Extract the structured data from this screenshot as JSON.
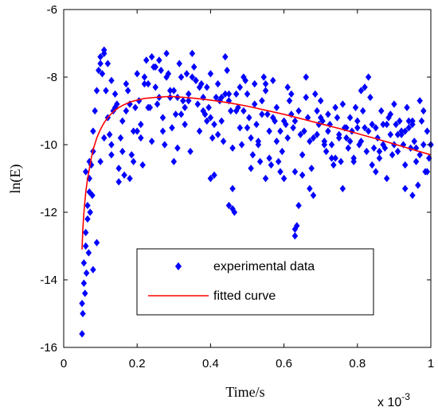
{
  "chart_data": {
    "type": "scatter",
    "xlabel": "Time/s",
    "ylabel": "ln(E)",
    "x_multiplier_base": "x 10",
    "x_multiplier_exp": "-3",
    "xlim": [
      0,
      0.001
    ],
    "ylim": [
      -16,
      -6
    ],
    "xticks": [
      0,
      0.0002,
      0.0004,
      0.0006,
      0.0008,
      0.001
    ],
    "xtick_labels": [
      "0",
      "0.2",
      "0.4",
      "0.6",
      "0.8",
      "1"
    ],
    "yticks": [
      -16,
      -14,
      -12,
      -10,
      -8,
      -6
    ],
    "ytick_labels": [
      "-16",
      "-14",
      "-12",
      "-10",
      "-8",
      "-6"
    ],
    "legend_position": "lower-center",
    "colors": {
      "scatter": "#0000ff",
      "curve": "#ff0000",
      "axes": "#000000"
    },
    "series": [
      {
        "name": "experimental data",
        "style": "markers",
        "x": [
          5e-05,
          5e-05,
          5.5e-05,
          5.5e-05,
          6e-05,
          6e-05,
          6.5e-05,
          6.5e-05,
          7e-05,
          7e-05,
          7.5e-05,
          8e-05,
          8e-05,
          8.5e-05,
          9e-05,
          9.5e-05,
          0.0001,
          0.0001,
          0.000105,
          0.00011,
          0.00011,
          0.000115,
          0.00012,
          0.000125,
          0.00013,
          0.000135,
          0.00014,
          0.000145,
          0.00015,
          0.000155,
          0.00016,
          0.000165,
          0.00017,
          0.000175,
          0.00018,
          0.000185,
          0.00019,
          0.000195,
          0.0002,
          0.000205,
          0.00021,
          0.000215,
          0.00022,
          0.000225,
          0.00023,
          0.000235,
          0.00024,
          0.000245,
          0.00025,
          0.000255,
          0.00026,
          0.000265,
          0.00027,
          0.000275,
          0.00028,
          0.000285,
          0.00029,
          0.000295,
          0.0003,
          0.000305,
          0.00031,
          0.000315,
          0.00032,
          0.000325,
          0.00033,
          0.000335,
          0.00034,
          0.000345,
          0.00035,
          0.000355,
          0.00036,
          0.000365,
          0.00037,
          0.000375,
          0.00038,
          0.000385,
          0.00039,
          0.000395,
          0.0004,
          0.000405,
          0.00041,
          0.000415,
          0.00042,
          0.000425,
          0.00043,
          0.000435,
          0.00044,
          0.000445,
          0.00045,
          0.000455,
          0.00046,
          0.000465,
          0.00047,
          0.000475,
          0.00048,
          0.000485,
          0.00049,
          0.000495,
          0.0005,
          0.000505,
          0.00051,
          0.000515,
          0.00052,
          0.000525,
          0.00053,
          0.000535,
          0.00054,
          0.000545,
          0.00055,
          0.000555,
          0.00056,
          0.000565,
          0.00057,
          0.000575,
          0.00058,
          0.000585,
          0.00059,
          0.000595,
          0.0006,
          0.000605,
          0.00061,
          0.000615,
          0.00062,
          0.000625,
          0.00063,
          0.000635,
          0.00064,
          0.000645,
          0.00065,
          0.000655,
          0.00066,
          0.000665,
          0.00067,
          0.000675,
          0.00068,
          0.000685,
          0.00069,
          0.000695,
          0.0007,
          0.000705,
          0.00071,
          0.000715,
          0.00072,
          0.000725,
          0.00073,
          0.000735,
          0.00074,
          0.000745,
          0.00075,
          0.000755,
          0.00076,
          0.000765,
          0.00077,
          0.000775,
          0.00078,
          0.000785,
          0.00079,
          0.000795,
          0.0008,
          0.000805,
          0.00081,
          0.000815,
          0.00082,
          0.000825,
          0.00083,
          0.000835,
          0.00084,
          0.000845,
          0.00085,
          0.000855,
          0.00086,
          0.000865,
          0.00087,
          0.000875,
          0.00088,
          0.000885,
          0.00089,
          0.000895,
          0.0009,
          0.000905,
          0.00091,
          0.000915,
          0.00092,
          0.000925,
          0.00093,
          0.000935,
          0.00094,
          0.000945,
          0.00095,
          0.000955,
          0.00096,
          0.000965,
          0.00097,
          0.000975,
          0.00098,
          0.000985,
          0.00099,
          0.000995,
          0.001,
          6e-05,
          7e-05,
          8e-05,
          9e-05,
          0.0001,
          0.00011,
          0.00012,
          0.00013,
          0.00014,
          0.00016,
          0.00018,
          0.0002,
          0.00022,
          0.00024,
          0.00026,
          0.00028,
          0.0003,
          0.00032,
          0.00034,
          0.00036,
          0.00038,
          0.0004,
          0.00042,
          0.00044,
          0.00046,
          0.00048,
          0.0005,
          0.00052,
          0.00054,
          0.00056,
          0.00058,
          0.0006,
          0.00062,
          0.00064,
          0.00066,
          0.00068,
          0.0007,
          0.00072,
          0.00074,
          0.00076,
          0.00078,
          0.0008,
          0.00082,
          0.00084,
          0.00086,
          0.00088,
          0.0009,
          0.00092,
          0.00094,
          0.00096,
          0.00098,
          0.00013,
          0.00017,
          0.00021,
          0.00025,
          0.00029,
          0.00033,
          0.00037,
          0.00041,
          0.00045,
          0.00049,
          0.00053,
          0.00057,
          0.00061,
          0.00065,
          0.00069,
          0.00073,
          0.00077,
          0.00081,
          0.00085,
          0.00089,
          0.00093,
          0.00097,
          0.00015,
          0.00019,
          0.00023,
          0.00027,
          0.00031,
          0.00035,
          0.00039,
          0.00043,
          0.00047,
          0.00051,
          0.00055,
          0.00059,
          0.00063,
          0.00067,
          0.00071,
          0.00075,
          0.00079,
          0.00083,
          0.00087,
          0.00091,
          0.00095,
          0.00099,
          5.2e-05,
          5.8e-05,
          6.2e-05,
          6.8e-05,
          7.2e-05,
          7.8e-05,
          0.00045,
          0.00063,
          0.00063,
          0.00046,
          0.0004,
          0.00055,
          0.00093,
          0.00095
        ],
        "y": [
          -15.6,
          -14.7,
          -14.1,
          -13.5,
          -13.0,
          -12.6,
          -12.2,
          -11.8,
          -11.4,
          -11.0,
          -10.6,
          -10.2,
          -9.6,
          -9.0,
          -8.4,
          -7.8,
          -7.4,
          -7.6,
          -7.9,
          -7.3,
          -7.2,
          -8.4,
          -9.2,
          -9.7,
          -10.3,
          -9.0,
          -8.5,
          -8.8,
          -11.1,
          -9.8,
          -9.3,
          -10.9,
          -9.0,
          -8.4,
          -8.8,
          -10.3,
          -9.6,
          -8.9,
          -7.9,
          -8.7,
          -9.8,
          -10.6,
          -8.0,
          -7.5,
          -8.2,
          -8.9,
          -7.4,
          -7.7,
          -8.3,
          -8.8,
          -7.5,
          -7.8,
          -9.2,
          -10.0,
          -7.3,
          -7.9,
          -8.4,
          -9.5,
          -10.5,
          -9.1,
          -8.6,
          -7.6,
          -8.0,
          -8.7,
          -9.4,
          -7.9,
          -8.5,
          -10.2,
          -7.3,
          -7.7,
          -8.1,
          -8.8,
          -9.6,
          -8.2,
          -8.6,
          -9.1,
          -8.3,
          -8.9,
          -9.2,
          -9.8,
          -10.9,
          -8.6,
          -8.2,
          -8.7,
          -9.3,
          -9.9,
          -7.4,
          -7.8,
          -8.5,
          -9.0,
          -11.3,
          -12.0,
          -8.5,
          -8.9,
          -9.5,
          -10.0,
          -9.0,
          -8.1,
          -8.5,
          -9.2,
          -9.8,
          -10.3,
          -8.2,
          -9.4,
          -9.9,
          -10.5,
          -8.7,
          -8.0,
          -8.4,
          -9.1,
          -9.6,
          -10.6,
          -8.1,
          -9.3,
          -9.9,
          -10.5,
          -9.6,
          -10.2,
          -11.0,
          -9.4,
          -8.3,
          -8.7,
          -9.1,
          -9.5,
          -10.8,
          -12.4,
          -9.0,
          -9.7,
          -10.3,
          -9.6,
          -8.6,
          -9.2,
          -9.9,
          -10.7,
          -11.5,
          -8.5,
          -9.0,
          -9.4,
          -8.7,
          -9.3,
          -9.9,
          -10.2,
          -9.1,
          -9.4,
          -10.0,
          -10.6,
          -8.9,
          -9.2,
          -9.7,
          -10.5,
          -11.3,
          -9.5,
          -9.8,
          -10.1,
          -9.2,
          -9.6,
          -10.4,
          -8.9,
          -9.3,
          -10.0,
          -8.4,
          -9.0,
          -9.5,
          -10.2,
          -8.0,
          -8.6,
          -9.4,
          -10.1,
          -9.5,
          -9.8,
          -10.4,
          -9.0,
          -9.4,
          -10.1,
          -11.0,
          -9.2,
          -9.7,
          -10.3,
          -8.8,
          -9.4,
          -10.2,
          -9.3,
          -9.6,
          -10.0,
          -10.6,
          -8.9,
          -9.5,
          -10.1,
          -9.4,
          -9.9,
          -10.5,
          -11.2,
          -8.7,
          -9.3,
          -10.0,
          -10.8,
          -9.6,
          -10.4,
          -10.0,
          -10.8,
          -10.5,
          -13.7,
          -12.9,
          -10.5,
          -9.8,
          -7.6,
          -8.1,
          -8.9,
          -10.2,
          -11.0,
          -9.6,
          -8.2,
          -9.9,
          -8.6,
          -8.0,
          -8.4,
          -9.1,
          -8.7,
          -8.1,
          -9.0,
          -7.9,
          -9.7,
          -8.5,
          -10.1,
          -8.3,
          -9.5,
          -8.8,
          -9.1,
          -10.4,
          -8.9,
          -9.3,
          -8.5,
          -11.8,
          -8.0,
          -9.8,
          -9.2,
          -9.6,
          -10.4,
          -8.8,
          -9.9,
          -9.5,
          -8.3,
          -10.6,
          -10.2,
          -9.4,
          -10.0,
          -9.7,
          -9.3,
          -10.1,
          -9.0,
          -10.0,
          -8.2,
          -9.4,
          -7.7,
          -8.6,
          -8.9,
          -8.3,
          -9.4,
          -8.7,
          -8.0,
          -10.0,
          -9.2,
          -9.8,
          -10.9,
          -9.7,
          -10.4,
          -9.5,
          -9.9,
          -10.8,
          -9.1,
          -9.6,
          -10.3,
          -10.7,
          -10.5,
          -8.9,
          -9.6,
          -10.1,
          -8.0,
          -9.3,
          -8.6,
          -9.0,
          -10.7,
          -8.2,
          -10.8,
          -9.3,
          -11.3,
          -10.0,
          -9.8,
          -10.5,
          -9.6,
          -10.0,
          -9.7,
          -9.3,
          -10.8,
          -15.0,
          -14.4,
          -13.8,
          -13.2,
          -12.0,
          -11.5,
          -11.8,
          -12.7,
          -12.5,
          -11.9,
          -11.0,
          -11.0,
          -11.3,
          -11.5
        ]
      },
      {
        "name": "fitted curve",
        "style": "line",
        "x": [
          5e-05,
          5.2e-05,
          5.5e-05,
          6e-05,
          6.5e-05,
          7e-05,
          7.5e-05,
          8e-05,
          9e-05,
          0.0001,
          0.00011,
          0.00012,
          0.00013,
          0.00014,
          0.00015,
          0.00016,
          0.00018,
          0.0002,
          0.00022,
          0.00025,
          0.00028,
          0.0003,
          0.00033,
          0.00036,
          0.0004,
          0.00045,
          0.0005,
          0.00055,
          0.0006,
          0.00065,
          0.0007,
          0.00075,
          0.0008,
          0.00085,
          0.0009,
          0.00095,
          0.001
        ],
        "y": [
          -13.1,
          -12.5,
          -12.0,
          -11.4,
          -11.0,
          -10.7,
          -10.4,
          -10.15,
          -9.8,
          -9.55,
          -9.35,
          -9.2,
          -9.08,
          -8.98,
          -8.9,
          -8.84,
          -8.74,
          -8.68,
          -8.63,
          -8.6,
          -8.58,
          -8.58,
          -8.6,
          -8.63,
          -8.68,
          -8.76,
          -8.86,
          -8.98,
          -9.1,
          -9.24,
          -9.38,
          -9.52,
          -9.67,
          -9.82,
          -9.98,
          -10.14,
          -10.3
        ]
      }
    ]
  }
}
